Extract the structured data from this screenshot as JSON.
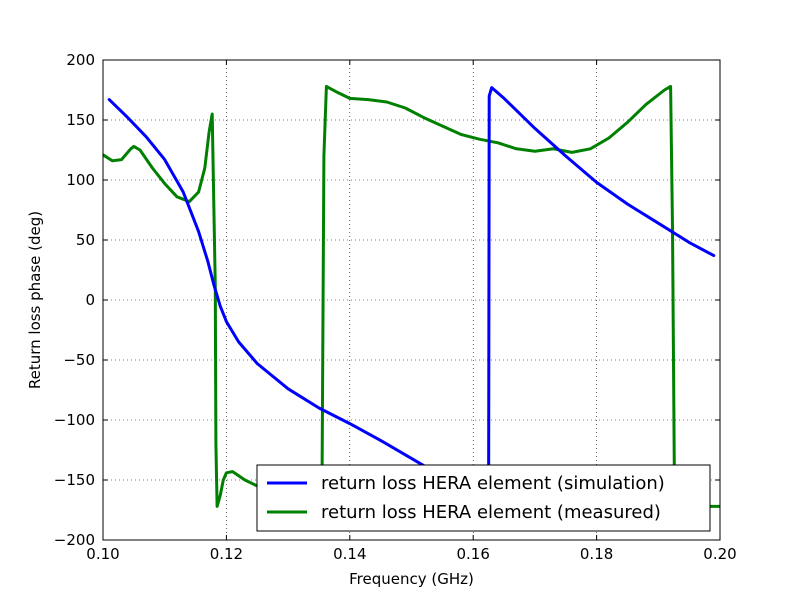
{
  "chart_data": {
    "type": "line",
    "title": "",
    "xlabel": "Frequency (GHz)",
    "ylabel": "Return loss phase (deg)",
    "xlim": [
      0.1,
      0.2
    ],
    "ylim": [
      -200,
      200
    ],
    "xticks": [
      0.1,
      0.12,
      0.14,
      0.16,
      0.18,
      0.2
    ],
    "yticks": [
      -200,
      -150,
      -100,
      -50,
      0,
      50,
      100,
      150,
      200
    ],
    "xtick_labels": [
      "0.10",
      "0.12",
      "0.14",
      "0.16",
      "0.18",
      "0.20"
    ],
    "ytick_labels": [
      "−200",
      "−150",
      "−100",
      "−50",
      "0",
      "50",
      "100",
      "150",
      "200"
    ],
    "grid": true,
    "legend_position": "lower-right",
    "series": [
      {
        "name": "return loss HERA element (simulation)",
        "color": "#0000ff",
        "x": [
          0.101,
          0.104,
          0.107,
          0.11,
          0.113,
          0.1155,
          0.117,
          0.118,
          0.119,
          0.12,
          0.122,
          0.125,
          0.13,
          0.135,
          0.14,
          0.145,
          0.15,
          0.155,
          0.16,
          0.1625,
          0.1626,
          0.163,
          0.165,
          0.17,
          0.175,
          0.18,
          0.185,
          0.19,
          0.195,
          0.199
        ],
        "y": [
          167,
          152,
          136,
          117,
          90,
          57,
          32,
          12,
          -5,
          -18,
          -35,
          -53,
          -74,
          -90,
          -103,
          -117,
          -132,
          -147,
          -163,
          -172,
          170,
          177,
          168,
          143,
          120,
          98,
          80,
          64,
          48,
          37
        ]
      },
      {
        "name": "return loss HERA element (measured)",
        "color": "#008000",
        "x": [
          0.1,
          0.1015,
          0.103,
          0.1045,
          0.105,
          0.106,
          0.108,
          0.11,
          0.112,
          0.114,
          0.1155,
          0.1165,
          0.1172,
          0.1177,
          0.1182,
          0.1183,
          0.1185,
          0.119,
          0.1195,
          0.12,
          0.121,
          0.123,
          0.125,
          0.128,
          0.131,
          0.134,
          0.1355,
          0.1358,
          0.1362,
          0.138,
          0.14,
          0.143,
          0.146,
          0.149,
          0.152,
          0.155,
          0.158,
          0.161,
          0.164,
          0.167,
          0.17,
          0.173,
          0.176,
          0.179,
          0.182,
          0.185,
          0.188,
          0.191,
          0.192,
          0.1923,
          0.1926,
          0.195,
          0.198,
          0.2
        ],
        "y": [
          121,
          116,
          117,
          126,
          128,
          125,
          110,
          97,
          86,
          82,
          90,
          110,
          140,
          155,
          10,
          -120,
          -172,
          -163,
          -150,
          -144,
          -143,
          -150,
          -155,
          -157,
          -158,
          -157,
          -157,
          120,
          178,
          173,
          168,
          167,
          165,
          160,
          152,
          145,
          138,
          134,
          131,
          126,
          124,
          126,
          123,
          126,
          135,
          148,
          163,
          175,
          178,
          60,
          -140,
          -165,
          -172,
          -172
        ]
      }
    ]
  }
}
